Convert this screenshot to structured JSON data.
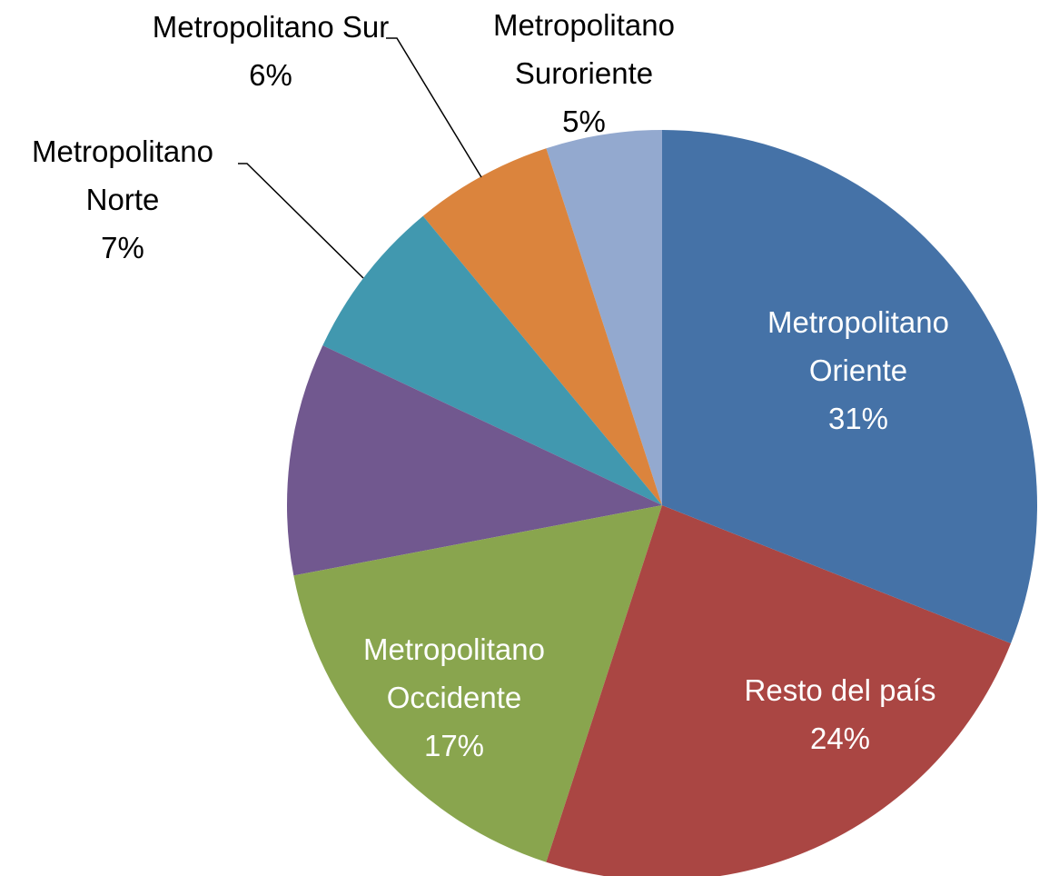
{
  "chart_data": {
    "type": "pie",
    "categories": [
      "Metropolitano Oriente",
      "Resto del país",
      "Metropolitano Occidente",
      null,
      "Metropolitano Norte",
      "Metropolitano Sur",
      "Metropolitano Suroriente"
    ],
    "values": [
      31,
      24,
      17,
      10,
      7,
      6,
      5
    ],
    "value_labels": [
      "31%",
      "24%",
      "17%",
      null,
      "7%",
      "6%",
      "5%"
    ],
    "colors": [
      "#4572a7",
      "#aa4643",
      "#89a54e",
      "#71588f",
      "#4198af",
      "#db843d",
      "#93a9cf"
    ]
  }
}
